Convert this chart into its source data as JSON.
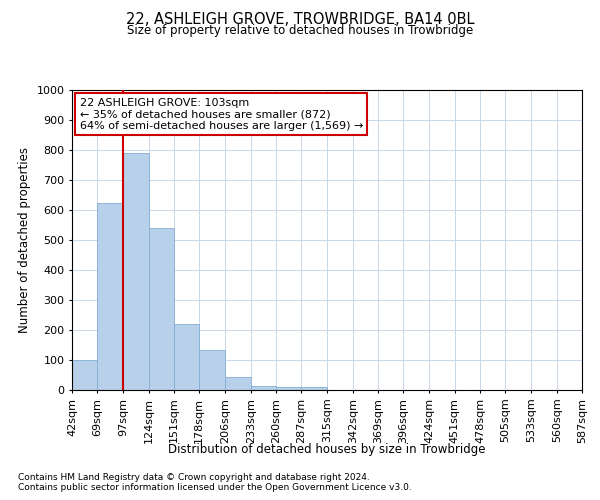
{
  "title": "22, ASHLEIGH GROVE, TROWBRIDGE, BA14 0BL",
  "subtitle": "Size of property relative to detached houses in Trowbridge",
  "xlabel": "Distribution of detached houses by size in Trowbridge",
  "ylabel": "Number of detached properties",
  "bar_values": [
    100,
    625,
    790,
    540,
    220,
    135,
    42,
    15,
    10,
    10,
    0,
    0,
    0,
    0,
    0,
    0,
    0,
    0,
    0,
    0
  ],
  "bin_edges": [
    42,
    69,
    97,
    124,
    151,
    178,
    206,
    233,
    260,
    287,
    315,
    342,
    369,
    396,
    424,
    451,
    478,
    505,
    533,
    560,
    587
  ],
  "tick_labels": [
    "42sqm",
    "69sqm",
    "97sqm",
    "124sqm",
    "151sqm",
    "178sqm",
    "206sqm",
    "233sqm",
    "260sqm",
    "287sqm",
    "315sqm",
    "342sqm",
    "369sqm",
    "396sqm",
    "424sqm",
    "451sqm",
    "478sqm",
    "505sqm",
    "533sqm",
    "560sqm",
    "587sqm"
  ],
  "bar_color": "#b8d0ea",
  "bar_edge_color": "#85aed4",
  "vline_x": 97,
  "vline_color": "#cc0000",
  "ylim": [
    0,
    1000
  ],
  "yticks": [
    0,
    100,
    200,
    300,
    400,
    500,
    600,
    700,
    800,
    900,
    1000
  ],
  "annotation_title": "22 ASHLEIGH GROVE: 103sqm",
  "annotation_line1": "← 35% of detached houses are smaller (872)",
  "annotation_line2": "64% of semi-detached houses are larger (1,569) →",
  "annotation_box_color": "#ffffff",
  "annotation_border_color": "#cc0000",
  "footnote1": "Contains HM Land Registry data © Crown copyright and database right 2024.",
  "footnote2": "Contains public sector information licensed under the Open Government Licence v3.0.",
  "bg_color": "#ffffff",
  "grid_color": "#c8d8ea"
}
